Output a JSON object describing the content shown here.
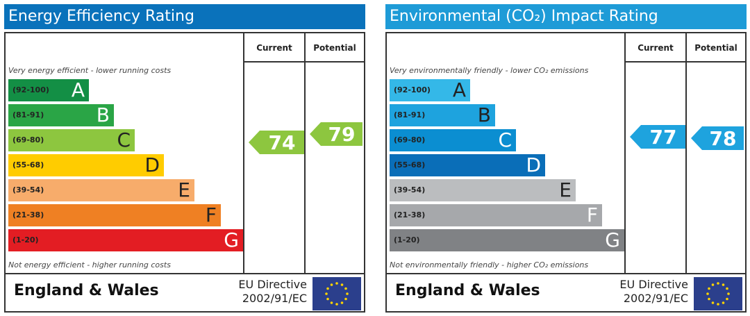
{
  "bar_colors": {
    "energy": [
      "#138f45",
      "#2aa546",
      "#8dc63f",
      "#ffcc00",
      "#f7ac6b",
      "#ef8023",
      "#e31d23"
    ],
    "environmental": [
      "#34b8e8",
      "#1ea3de",
      "#0b8ed1",
      "#0a6eb8",
      "#bbbdbf",
      "#a6a8ab",
      "#808285"
    ],
    "energy_title_bg": "#0a72bb",
    "env_title_bg": "#1e9bd7",
    "energy_score": "#8dc63f",
    "env_score": "#1ea3de"
  },
  "chart_data": [
    {
      "type": "bar",
      "title": "Energy Efficiency Rating",
      "column_headers": [
        "Current",
        "Potential"
      ],
      "top_note": "Very energy efficient - lower running costs",
      "bottom_note": "Not energy efficient - higher running costs",
      "categories": [
        "A",
        "B",
        "C",
        "D",
        "E",
        "F",
        "G"
      ],
      "ranges": [
        "(92-100)",
        "(81-91)",
        "(69-80)",
        "(55-68)",
        "(39-54)",
        "(21-38)",
        "(1-20)"
      ],
      "current": 74,
      "potential": 79,
      "region": "England & Wales",
      "directive_line1": "EU Directive",
      "directive_line2": "2002/91/EC"
    },
    {
      "type": "bar",
      "title": "Environmental (CO₂) Impact Rating",
      "column_headers": [
        "Current",
        "Potential"
      ],
      "top_note": "Very environmentally friendly - lower CO₂ emissions",
      "bottom_note": "Not environmentally friendly - higher CO₂ emissions",
      "categories": [
        "A",
        "B",
        "C",
        "D",
        "E",
        "F",
        "G"
      ],
      "ranges": [
        "(92-100)",
        "(81-91)",
        "(69-80)",
        "(55-68)",
        "(39-54)",
        "(21-38)",
        "(1-20)"
      ],
      "current": 77,
      "potential": 78,
      "region": "England & Wales",
      "directive_line1": "EU Directive",
      "directive_line2": "2002/91/EC"
    }
  ]
}
